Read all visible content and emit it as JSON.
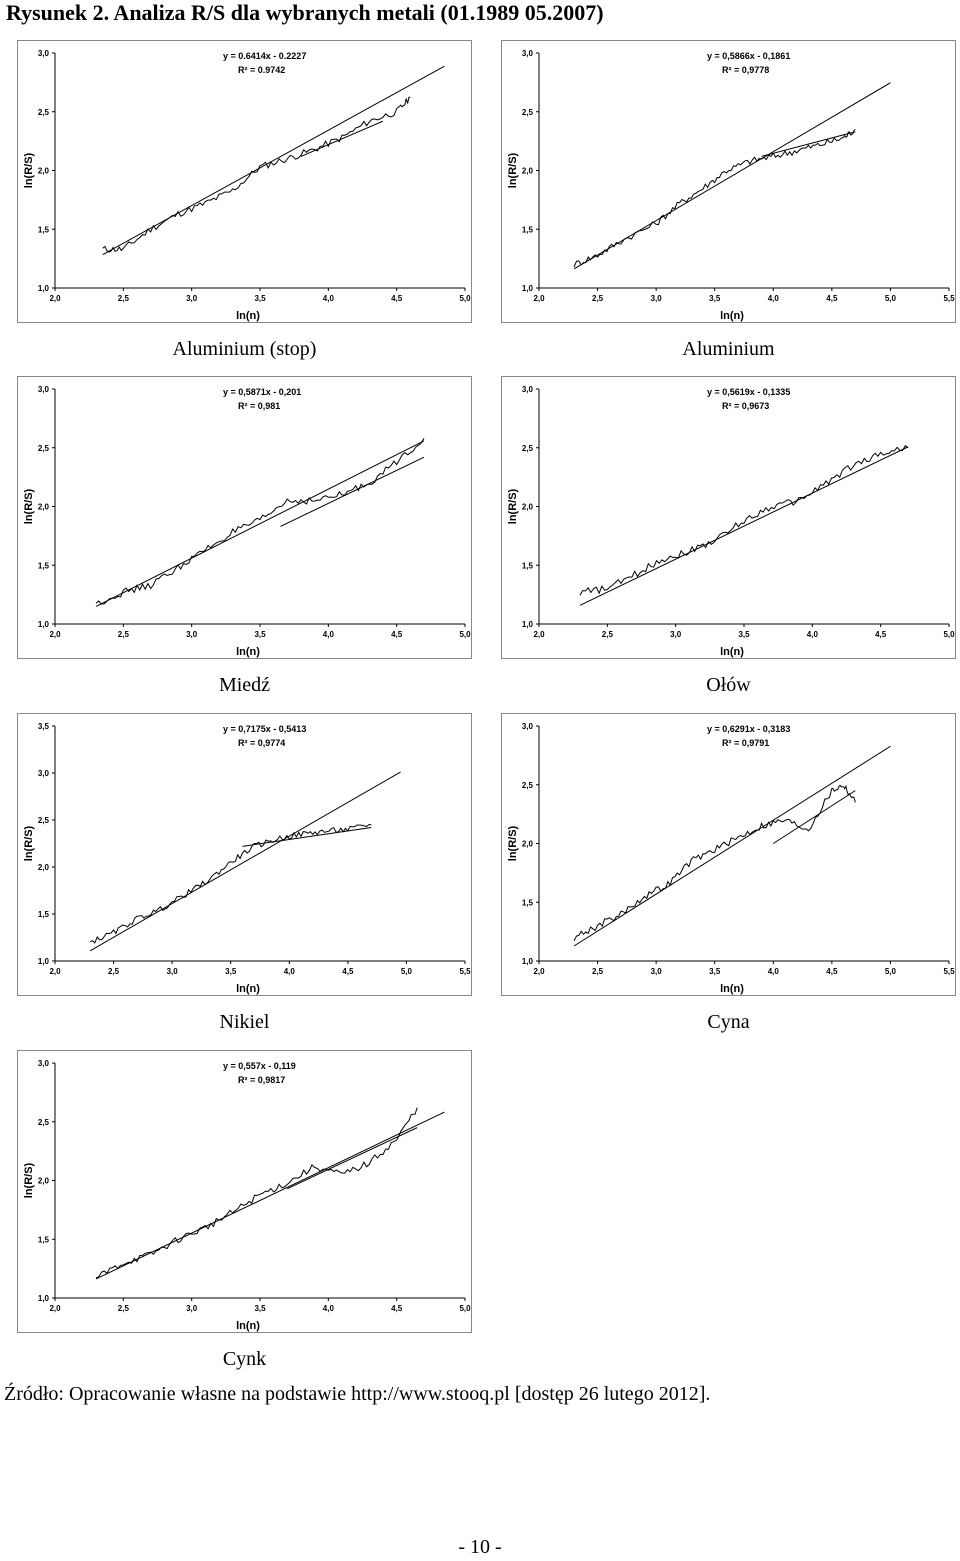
{
  "figure_title": "Rysunek 2. Analiza R/S dla wybranych metali (01.1989   05.2007)",
  "source_note": "Źródło: Opracowanie własne na podstawie http://www.stooq.pl [dostęp 26 lutego 2012].",
  "page_number": "- 10 -",
  "colors": {
    "line": "#000000",
    "frame": "#888888"
  },
  "chart_data": [
    {
      "type": "line",
      "caption": "Aluminium (stop)",
      "xlabel": "ln(n)",
      "ylabel": "ln(R/S)",
      "xlim": [
        2.0,
        5.0
      ],
      "ylim": [
        1.0,
        3.0
      ],
      "xticks": [
        "2,0",
        "2,5",
        "3,0",
        "3,5",
        "4,0",
        "4,5",
        "5,0"
      ],
      "yticks": [
        "1,0",
        "1,5",
        "2,0",
        "2,5",
        "3,0"
      ],
      "equation": "y = 0.6414x - 0.2227",
      "r2": "R² = 0.9742",
      "trend": {
        "slope": 0.6414,
        "intercept": -0.2227,
        "x_range": [
          2.35,
          4.85
        ]
      },
      "short_trend": {
        "x_range": [
          3.8,
          4.4
        ],
        "y_range": [
          2.12,
          2.42
        ]
      },
      "series_x": [
        2.35,
        2.5,
        2.7,
        2.9,
        3.1,
        3.3,
        3.5,
        3.7,
        3.9,
        4.1,
        4.3,
        4.5,
        4.6
      ],
      "series_y": [
        1.33,
        1.33,
        1.5,
        1.63,
        1.72,
        1.83,
        2.03,
        2.1,
        2.18,
        2.28,
        2.42,
        2.5,
        2.62
      ]
    },
    {
      "type": "line",
      "caption": "Aluminium",
      "xlabel": "ln(n)",
      "ylabel": "ln(R/S)",
      "xlim": [
        2.0,
        5.5
      ],
      "ylim": [
        1.0,
        3.0
      ],
      "xticks": [
        "2,0",
        "2,5",
        "3,0",
        "3,5",
        "4,0",
        "4,5",
        "5,0",
        "5,5"
      ],
      "yticks": [
        "1,0",
        "1,5",
        "2,0",
        "2,5",
        "3,0"
      ],
      "equation": "y = 0,5866x - 0,1861",
      "r2": "R² = 0,9778",
      "trend": {
        "slope": 0.5866,
        "intercept": -0.1861,
        "x_range": [
          2.3,
          5.0
        ]
      },
      "short_trend": {
        "x_range": [
          3.9,
          4.7
        ],
        "y_range": [
          2.12,
          2.33
        ]
      },
      "series_x": [
        2.3,
        2.5,
        2.7,
        3.0,
        3.2,
        3.4,
        3.6,
        3.8,
        4.0,
        4.2,
        4.4,
        4.6,
        4.7
      ],
      "series_y": [
        1.2,
        1.28,
        1.4,
        1.55,
        1.72,
        1.85,
        2.0,
        2.08,
        2.12,
        2.17,
        2.22,
        2.28,
        2.35
      ]
    },
    {
      "type": "line",
      "caption": "Miedź",
      "xlabel": "ln(n)",
      "ylabel": "ln(R/S)",
      "xlim": [
        2.0,
        5.0
      ],
      "ylim": [
        1.0,
        3.0
      ],
      "xticks": [
        "2,0",
        "2,5",
        "3,0",
        "3,5",
        "4,0",
        "4,5",
        "5,0"
      ],
      "yticks": [
        "1,0",
        "1,5",
        "2,0",
        "2,5",
        "3,0"
      ],
      "equation": "y = 0,5871x - 0,201",
      "r2": "R² = 0,981",
      "trend": {
        "slope": 0.5871,
        "intercept": -0.201,
        "x_range": [
          2.3,
          4.7
        ]
      },
      "short_trend": {
        "x_range": [
          3.65,
          4.7
        ],
        "y_range": [
          1.83,
          2.42
        ]
      },
      "series_x": [
        2.3,
        2.5,
        2.7,
        2.9,
        3.1,
        3.3,
        3.5,
        3.7,
        3.9,
        4.1,
        4.3,
        4.5,
        4.7
      ],
      "series_y": [
        1.17,
        1.27,
        1.33,
        1.48,
        1.63,
        1.78,
        1.88,
        2.05,
        2.05,
        2.1,
        2.2,
        2.38,
        2.58
      ]
    },
    {
      "type": "line",
      "caption": "Ołów",
      "xlabel": "ln(n)",
      "ylabel": "ln(R/S)",
      "xlim": [
        2.0,
        5.0
      ],
      "ylim": [
        1.0,
        3.0
      ],
      "xticks": [
        "2,0",
        "2,5",
        "3,0",
        "3,5",
        "4,0",
        "4,5",
        "5,0"
      ],
      "yticks": [
        "1,0",
        "1,5",
        "2,0",
        "2,5",
        "3,0"
      ],
      "equation": "y = 0,5619x - 0,1335",
      "r2": "R² = 0,9673",
      "trend": {
        "slope": 0.5619,
        "intercept": -0.1335,
        "x_range": [
          2.3,
          4.7
        ]
      },
      "series_x": [
        2.3,
        2.5,
        2.7,
        2.9,
        3.1,
        3.3,
        3.5,
        3.7,
        3.9,
        4.1,
        4.3,
        4.5,
        4.7
      ],
      "series_y": [
        1.27,
        1.3,
        1.42,
        1.55,
        1.62,
        1.72,
        1.88,
        2.0,
        2.05,
        2.2,
        2.35,
        2.45,
        2.5
      ]
    },
    {
      "type": "line",
      "caption": "Nikiel",
      "xlabel": "ln(n)",
      "ylabel": "ln(R/S)",
      "xlim": [
        2.0,
        5.5
      ],
      "ylim": [
        1.0,
        3.5
      ],
      "xticks": [
        "2,0",
        "2,5",
        "3,0",
        "3,5",
        "4,0",
        "4,5",
        "5,0",
        "5,5"
      ],
      "yticks": [
        "1,0",
        "1,5",
        "2,0",
        "2,5",
        "3,0",
        "3,5"
      ],
      "equation": "y = 0,7175x - 0,5413",
      "r2": "R² = 0,9774",
      "trend": {
        "slope": 0.7175,
        "intercept": -0.5413,
        "x_range": [
          2.3,
          4.95
        ]
      },
      "short_trend": {
        "x_range": [
          3.6,
          4.7
        ],
        "y_range": [
          2.22,
          2.42
        ]
      },
      "series_x": [
        2.3,
        2.5,
        2.7,
        2.9,
        3.1,
        3.3,
        3.5,
        3.7,
        3.9,
        4.1,
        4.3,
        4.5,
        4.7
      ],
      "series_y": [
        1.2,
        1.3,
        1.45,
        1.55,
        1.7,
        1.85,
        2.05,
        2.22,
        2.3,
        2.35,
        2.38,
        2.4,
        2.45
      ]
    },
    {
      "type": "line",
      "caption": "Cyna",
      "xlabel": "ln(n)",
      "ylabel": "ln(R/S)",
      "xlim": [
        2.0,
        5.5
      ],
      "ylim": [
        1.0,
        3.0
      ],
      "xticks": [
        "2,0",
        "2,5",
        "3,0",
        "3,5",
        "4,0",
        "4,5",
        "5,0",
        "5,5"
      ],
      "yticks": [
        "1,0",
        "1,5",
        "2,0",
        "2,5",
        "3,0"
      ],
      "equation": "y = 0,6291x - 0,3183",
      "r2": "R² = 0,9791",
      "trend": {
        "slope": 0.6291,
        "intercept": -0.3183,
        "x_range": [
          2.3,
          5.0
        ]
      },
      "short_trend": {
        "x_range": [
          4.0,
          4.7
        ],
        "y_range": [
          2.0,
          2.45
        ]
      },
      "series_x": [
        2.3,
        2.5,
        2.7,
        2.9,
        3.1,
        3.3,
        3.5,
        3.7,
        3.9,
        4.1,
        4.3,
        4.5,
        4.6,
        4.7
      ],
      "series_y": [
        1.2,
        1.3,
        1.4,
        1.55,
        1.65,
        1.85,
        1.95,
        2.05,
        2.15,
        2.2,
        2.12,
        2.45,
        2.5,
        2.35
      ]
    },
    {
      "type": "line",
      "caption": "Cynk",
      "xlabel": "ln(n)",
      "ylabel": "ln(R/S)",
      "xlim": [
        2.0,
        5.0
      ],
      "ylim": [
        1.0,
        3.0
      ],
      "xticks": [
        "2,0",
        "2,5",
        "3,0",
        "3,5",
        "4,0",
        "4,5",
        "5,0"
      ],
      "yticks": [
        "1,0",
        "1,5",
        "2,0",
        "2,5",
        "3,0"
      ],
      "equation": "y = 0,557x - 0,119",
      "r2": "R² = 0,9817",
      "trend": {
        "slope": 0.557,
        "intercept": -0.119,
        "x_range": [
          2.3,
          4.85
        ]
      },
      "short_trend": {
        "x_range": [
          3.7,
          4.65
        ],
        "y_range": [
          1.93,
          2.45
        ]
      },
      "series_x": [
        2.3,
        2.5,
        2.7,
        2.9,
        3.1,
        3.3,
        3.5,
        3.7,
        3.9,
        4.1,
        4.3,
        4.5,
        4.65
      ],
      "series_y": [
        1.17,
        1.3,
        1.37,
        1.5,
        1.6,
        1.73,
        1.88,
        1.98,
        2.12,
        2.05,
        2.15,
        2.35,
        2.62
      ]
    }
  ]
}
